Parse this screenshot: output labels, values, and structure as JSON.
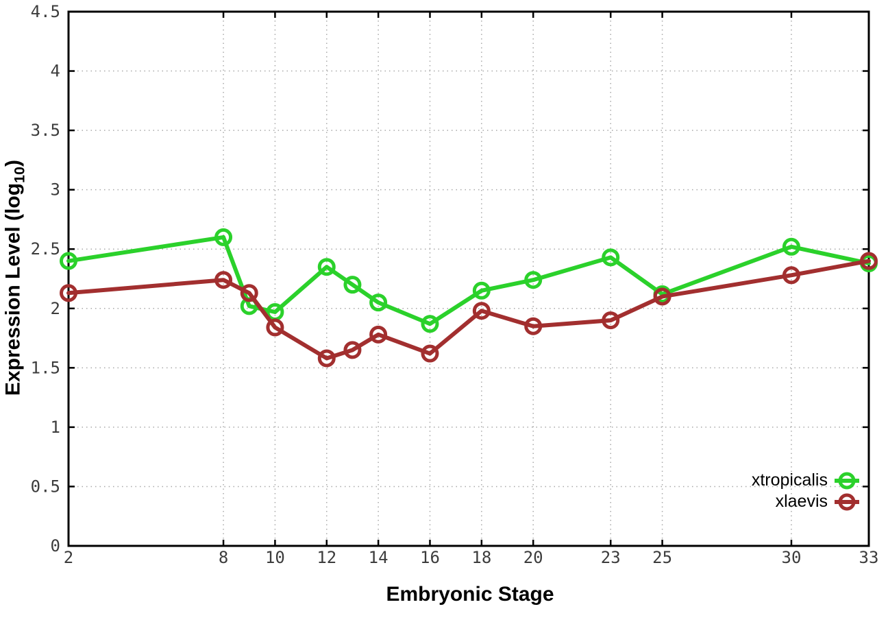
{
  "chart_data": {
    "type": "line",
    "title": "",
    "xlabel": "Embryonic Stage",
    "ylabel": {
      "prefix": "Expression Level (log",
      "sub": "10",
      "suffix": ")"
    },
    "xlim": [
      2,
      33
    ],
    "ylim": [
      0,
      4.5
    ],
    "grid": true,
    "grid_style": "dotted",
    "legend_position": "bottom-right-inside",
    "x_ticks": {
      "values": [
        2,
        8,
        10,
        12,
        14,
        16,
        18,
        20,
        23,
        25,
        30,
        33
      ],
      "labels": [
        "2",
        "8",
        "10",
        "12",
        "14",
        "16",
        "18",
        "20",
        "23",
        "25",
        "30",
        "33"
      ]
    },
    "y_ticks": {
      "values": [
        0,
        0.5,
        1,
        1.5,
        2,
        2.5,
        3,
        3.5,
        4,
        4.5
      ],
      "labels": [
        "0",
        "0.5",
        "1",
        "1.5",
        "2",
        "2.5",
        "3",
        "3.5",
        "4",
        "4.5"
      ]
    },
    "x": [
      2,
      8,
      9,
      10,
      12,
      13,
      14,
      16,
      18,
      20,
      23,
      25,
      30,
      33
    ],
    "series": [
      {
        "name": "xtropicalis",
        "color": "#2bd12b",
        "marker": "open-circle",
        "values": [
          2.4,
          2.6,
          2.02,
          1.97,
          2.35,
          2.2,
          2.05,
          1.87,
          2.15,
          2.24,
          2.43,
          2.12,
          2.52,
          2.38
        ]
      },
      {
        "name": "xlaevis",
        "color": "#a22f2f",
        "marker": "open-circle",
        "values": [
          2.13,
          2.24,
          2.13,
          1.84,
          1.58,
          1.65,
          1.78,
          1.62,
          1.98,
          1.85,
          1.9,
          2.1,
          2.28,
          2.4
        ]
      }
    ],
    "colors": {
      "frame": "#000000",
      "grid": "#a8a8a8",
      "tick_text": "#3c3c3c"
    }
  }
}
